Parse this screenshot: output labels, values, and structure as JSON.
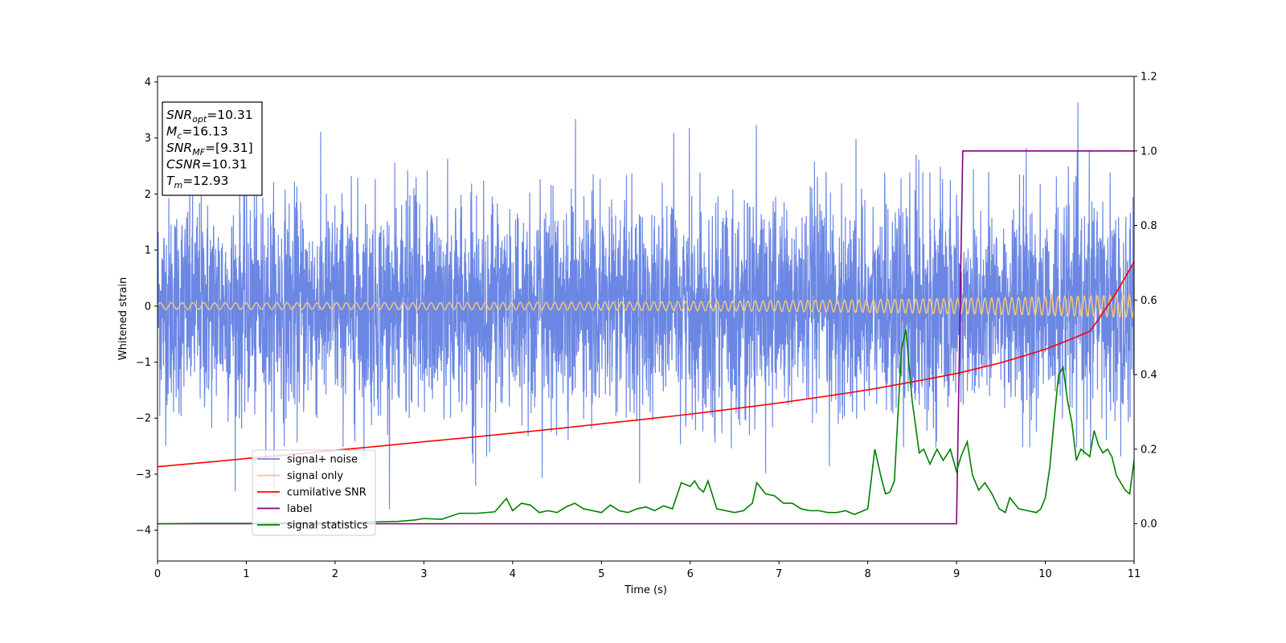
{
  "chart_data": {
    "type": "line",
    "title": "",
    "xlabel": "Time (s)",
    "ylabel": "Whitened strain",
    "y2label": "",
    "xlim": [
      0,
      11
    ],
    "ylim": [
      -4.55,
      4.1
    ],
    "y2lim": [
      -0.1,
      1.2
    ],
    "x_ticks": [
      0,
      1,
      2,
      3,
      4,
      5,
      6,
      7,
      8,
      9,
      10,
      11
    ],
    "y_ticks": [
      -4,
      -3,
      -2,
      -1,
      0,
      1,
      2,
      3,
      4
    ],
    "y2_ticks": [
      0.0,
      0.2,
      0.4,
      0.6,
      0.8,
      1.0,
      1.2
    ],
    "x_tick_labels": [
      "0",
      "1",
      "2",
      "3",
      "4",
      "5",
      "6",
      "7",
      "8",
      "9",
      "10",
      "11"
    ],
    "y_tick_labels": [
      "−4",
      "−3",
      "−2",
      "−1",
      "0",
      "1",
      "2",
      "3",
      "4"
    ],
    "y2_tick_labels": [
      "0.0",
      "0.2",
      "0.4",
      "0.6",
      "0.8",
      "1.0",
      "1.2"
    ],
    "grid": false,
    "legend_position": "lower-left",
    "annotation_box": [
      {
        "base": "SNR",
        "sub": "opt",
        "value": "=10.31"
      },
      {
        "base": "M",
        "sub": "c",
        "value": "=16.13"
      },
      {
        "base": "SNR",
        "sub": "MF",
        "value": "=[9.31]"
      },
      {
        "base": "CSNR",
        "sub": "",
        "value": "=10.31"
      },
      {
        "base": "T",
        "sub": "m",
        "value": "=12.93"
      }
    ],
    "series": [
      {
        "name": "signal+ noise",
        "color": "#6b87e3",
        "axis": "left",
        "kind": "noise",
        "noise_std": 0.95,
        "approx_range": [
          -3.75,
          3.7
        ]
      },
      {
        "name": "signal only",
        "color": "#f5c57a",
        "axis": "left",
        "kind": "chirp",
        "amplitude_start": 0.06,
        "amplitude_end": 0.2,
        "cycles_per_second_start": 8,
        "cycles_per_second_end": 14
      },
      {
        "name": "cumilative SNR",
        "color": "#ff0000",
        "axis": "right",
        "x": [
          0,
          1,
          2,
          3,
          4,
          5,
          6,
          7,
          8,
          9,
          9.5,
          10,
          10.5,
          11
        ],
        "y": [
          0.153,
          0.175,
          0.197,
          0.22,
          0.243,
          0.268,
          0.294,
          0.324,
          0.359,
          0.403,
          0.432,
          0.468,
          0.516,
          0.703
        ]
      },
      {
        "name": "label",
        "color": "#800080",
        "axis": "right",
        "x": [
          0,
          9.0,
          9.07,
          11
        ],
        "y": [
          0.0,
          0.0,
          1.0,
          1.0
        ]
      },
      {
        "name": "signal statistics",
        "color": "#008000",
        "axis": "right",
        "x": [
          0,
          0.5,
          1.0,
          1.5,
          2.0,
          2.5,
          2.7,
          2.9,
          3.0,
          3.2,
          3.4,
          3.6,
          3.8,
          3.93,
          4.0,
          4.1,
          4.2,
          4.3,
          4.4,
          4.5,
          4.6,
          4.7,
          4.8,
          4.9,
          5.0,
          5.1,
          5.2,
          5.3,
          5.4,
          5.5,
          5.6,
          5.7,
          5.8,
          5.9,
          6.0,
          6.05,
          6.1,
          6.15,
          6.2,
          6.3,
          6.4,
          6.5,
          6.6,
          6.7,
          6.75,
          6.85,
          6.95,
          7.05,
          7.15,
          7.25,
          7.35,
          7.45,
          7.55,
          7.65,
          7.75,
          7.85,
          7.9,
          8.0,
          8.08,
          8.15,
          8.2,
          8.25,
          8.3,
          8.38,
          8.43,
          8.5,
          8.58,
          8.63,
          8.7,
          8.78,
          8.85,
          8.93,
          9.0,
          9.05,
          9.12,
          9.18,
          9.25,
          9.32,
          9.4,
          9.48,
          9.55,
          9.6,
          9.7,
          9.8,
          9.9,
          9.95,
          10.0,
          10.05,
          10.1,
          10.15,
          10.2,
          10.25,
          10.3,
          10.35,
          10.4,
          10.5,
          10.55,
          10.6,
          10.65,
          10.7,
          10.75,
          10.8,
          10.9,
          10.95,
          11.0
        ],
        "y": [
          0.0,
          0.001,
          0.001,
          0.002,
          0.003,
          0.005,
          0.006,
          0.01,
          0.014,
          0.012,
          0.028,
          0.028,
          0.032,
          0.068,
          0.035,
          0.055,
          0.05,
          0.03,
          0.035,
          0.03,
          0.045,
          0.055,
          0.04,
          0.035,
          0.03,
          0.05,
          0.035,
          0.03,
          0.04,
          0.045,
          0.035,
          0.048,
          0.04,
          0.11,
          0.1,
          0.115,
          0.095,
          0.085,
          0.115,
          0.04,
          0.035,
          0.03,
          0.035,
          0.055,
          0.11,
          0.08,
          0.075,
          0.055,
          0.055,
          0.04,
          0.035,
          0.035,
          0.03,
          0.03,
          0.035,
          0.025,
          0.03,
          0.04,
          0.2,
          0.125,
          0.08,
          0.085,
          0.115,
          0.47,
          0.52,
          0.33,
          0.19,
          0.2,
          0.16,
          0.2,
          0.17,
          0.2,
          0.14,
          0.18,
          0.22,
          0.13,
          0.09,
          0.11,
          0.08,
          0.04,
          0.03,
          0.07,
          0.04,
          0.035,
          0.03,
          0.04,
          0.07,
          0.15,
          0.28,
          0.4,
          0.42,
          0.33,
          0.27,
          0.17,
          0.2,
          0.18,
          0.25,
          0.21,
          0.19,
          0.2,
          0.18,
          0.13,
          0.09,
          0.08,
          0.17
        ]
      }
    ]
  }
}
